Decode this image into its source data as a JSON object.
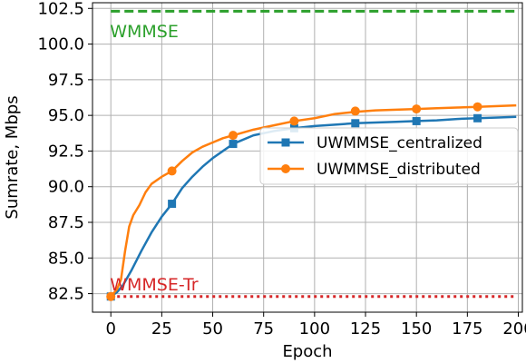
{
  "chart_data": {
    "type": "line",
    "xlabel": "Epoch",
    "ylabel": "Sumrate, Mbps",
    "xlim": [
      -9,
      202
    ],
    "ylim": [
      81.2,
      102.9
    ],
    "xticks": [
      0,
      25,
      50,
      75,
      100,
      125,
      150,
      175,
      200
    ],
    "xtick_labels": [
      "0",
      "25",
      "50",
      "75",
      "100",
      "125",
      "150",
      "175",
      "200"
    ],
    "yticks": [
      82.5,
      85.0,
      87.5,
      90.0,
      92.5,
      95.0,
      97.5,
      100.0,
      102.5
    ],
    "ytick_labels": [
      "82.5",
      "85.0",
      "87.5",
      "90.0",
      "92.5",
      "95.0",
      "97.5",
      "100.0",
      "102.5"
    ],
    "grid": true,
    "legend_position": "center-right",
    "series": [
      {
        "name": "UWMMSE_centralized",
        "color": "#1f77b4",
        "marker": "square",
        "x": [
          0,
          3,
          6,
          10,
          15,
          20,
          25,
          30,
          35,
          40,
          45,
          50,
          55,
          60,
          70,
          80,
          90,
          100,
          110,
          120,
          130,
          140,
          150,
          160,
          170,
          180,
          190,
          199
        ],
        "y": [
          82.3,
          82.6,
          83.1,
          84.1,
          85.5,
          86.8,
          87.9,
          88.8,
          89.9,
          90.7,
          91.4,
          92.0,
          92.5,
          93.0,
          93.6,
          93.9,
          94.1,
          94.25,
          94.35,
          94.45,
          94.5,
          94.55,
          94.6,
          94.65,
          94.75,
          94.8,
          94.85,
          94.9
        ],
        "marker_x": [
          0,
          30,
          60,
          90,
          120,
          150,
          180
        ],
        "marker_y": [
          82.3,
          88.8,
          93.0,
          94.1,
          94.45,
          94.6,
          94.8
        ]
      },
      {
        "name": "UWMMSE_distributed",
        "color": "#ff7f0e",
        "marker": "circle",
        "x": [
          0,
          3,
          5,
          7,
          9,
          11,
          14,
          17,
          20,
          25,
          30,
          35,
          40,
          45,
          50,
          55,
          60,
          70,
          80,
          90,
          100,
          110,
          120,
          130,
          140,
          150,
          160,
          170,
          180,
          190,
          199
        ],
        "y": [
          82.3,
          82.8,
          83.5,
          85.5,
          87.2,
          88.0,
          88.7,
          89.6,
          90.2,
          90.7,
          91.1,
          91.8,
          92.4,
          92.8,
          93.1,
          93.4,
          93.6,
          94.0,
          94.3,
          94.6,
          94.8,
          95.1,
          95.25,
          95.35,
          95.4,
          95.45,
          95.5,
          95.55,
          95.6,
          95.65,
          95.7
        ],
        "marker_x": [
          0,
          30,
          60,
          90,
          120,
          150,
          180
        ],
        "marker_y": [
          82.3,
          91.1,
          93.6,
          94.6,
          95.3,
          95.45,
          95.6
        ]
      }
    ],
    "reference_lines": [
      {
        "label": "WMMSE",
        "y": 102.3,
        "color": "#2ca02c",
        "style": "dashed"
      },
      {
        "label": "WMMSE-Tr",
        "y": 82.3,
        "color": "#d62728",
        "style": "dotted"
      }
    ]
  }
}
